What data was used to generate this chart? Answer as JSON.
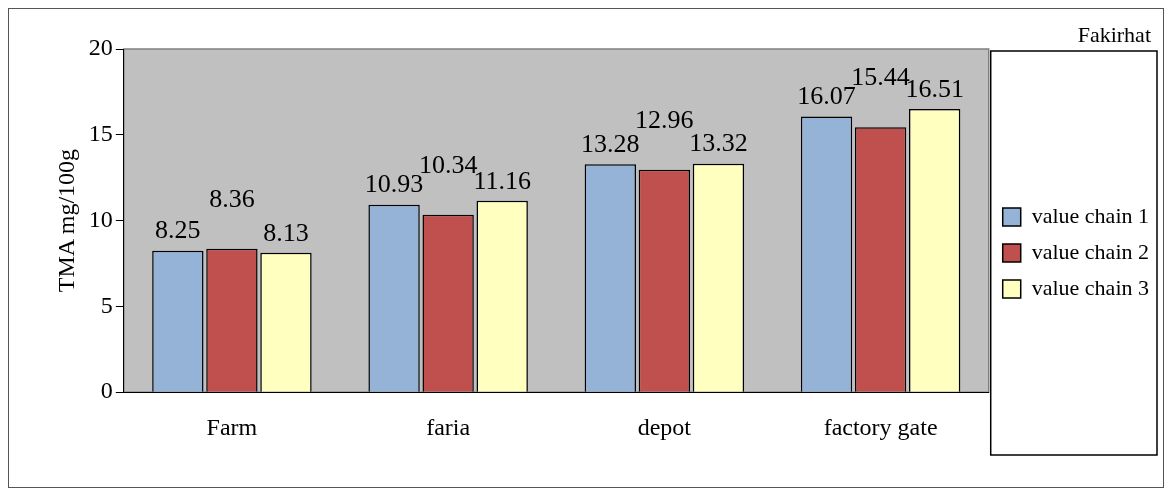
{
  "chart_data": {
    "type": "bar",
    "ylabel": "TMA mg/100g",
    "annotations": [
      "Fakirhat"
    ],
    "categories": [
      "Farm",
      "faria",
      "depot",
      "factory gate"
    ],
    "series": [
      {
        "name": "value chain 1",
        "color": "#95b3d7",
        "values": [
          8.25,
          10.93,
          13.28,
          16.07
        ]
      },
      {
        "name": "value chain 2",
        "color": "#c0504d",
        "values": [
          8.36,
          10.34,
          12.96,
          15.44
        ]
      },
      {
        "name": "value chain 3",
        "color": "#ffffc0",
        "values": [
          8.13,
          11.16,
          13.32,
          16.51
        ]
      }
    ],
    "ylim": [
      0,
      20
    ],
    "yticks": [
      0,
      5,
      10,
      15,
      20
    ],
    "grid": false,
    "legend": "right",
    "data_labels": true
  }
}
